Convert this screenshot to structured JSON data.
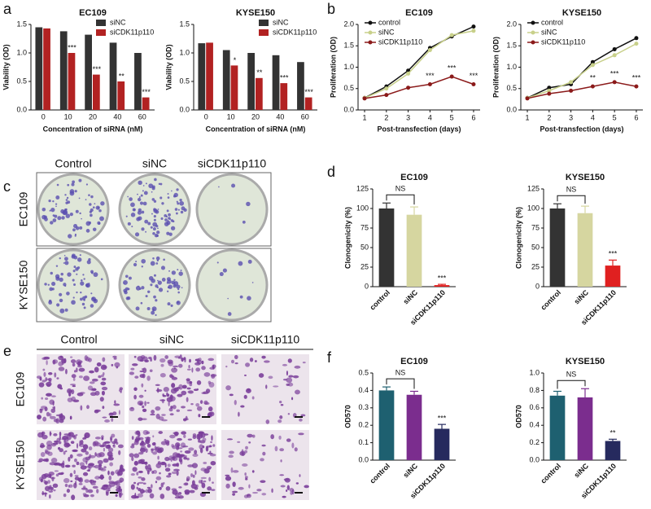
{
  "panel_labels": [
    "a",
    "b",
    "c",
    "d",
    "e",
    "f"
  ],
  "panel_c": {
    "columns": [
      "Control",
      "siNC",
      "siCDK11p110"
    ],
    "rows": [
      "EC109",
      "KYSE150"
    ]
  },
  "panel_e": {
    "columns": [
      "Control",
      "siNC",
      "siCDK11p110"
    ],
    "rows": [
      "EC109",
      "KYSE150"
    ]
  },
  "chart_data": [
    {
      "type": "bar",
      "title": "EC109",
      "xlabel": "Concentration of siRNA (nM)",
      "ylabel": "Viability (OD)",
      "categories": [
        "0",
        "10",
        "20",
        "40",
        "60"
      ],
      "series": [
        {
          "name": "siNC",
          "color": "#333333",
          "values": [
            1.45,
            1.38,
            1.32,
            1.18,
            1.0
          ]
        },
        {
          "name": "siCDK11p110",
          "color": "#b22222",
          "values": [
            1.43,
            1.0,
            0.62,
            0.5,
            0.22
          ],
          "significance": [
            null,
            "***",
            "***",
            "**",
            "***"
          ]
        }
      ],
      "ylim": [
        0,
        1.5
      ],
      "yticks": [
        {
          "value": 0,
          "label": "0.0"
        },
        {
          "value": 0.5,
          "label": "0.5"
        },
        {
          "value": 1,
          "label": "1.0"
        },
        {
          "value": 1.5,
          "label": "1.5"
        }
      ],
      "legend": "upper right"
    },
    {
      "type": "bar",
      "title": "KYSE150",
      "xlabel": "Concentration of siRNA (nM)",
      "ylabel": "Viability (OD)",
      "categories": [
        "0",
        "10",
        "20",
        "40",
        "60"
      ],
      "series": [
        {
          "name": "siNC",
          "color": "#333333",
          "values": [
            1.17,
            1.05,
            1.0,
            0.96,
            0.84
          ]
        },
        {
          "name": "siCDK11p110",
          "color": "#b22222",
          "values": [
            1.18,
            0.78,
            0.56,
            0.47,
            0.22
          ],
          "significance": [
            null,
            "*",
            "**",
            "***",
            "***"
          ]
        }
      ],
      "ylim": [
        0,
        1.5
      ],
      "yticks": [
        {
          "value": 0,
          "label": "0.0"
        },
        {
          "value": 0.5,
          "label": "0.5"
        },
        {
          "value": 1,
          "label": "1.0"
        },
        {
          "value": 1.5,
          "label": "1.5"
        }
      ],
      "legend": "upper right"
    },
    {
      "type": "line",
      "title": "EC109",
      "xlabel": "Post-transfection (days)",
      "ylabel": "Proliferation (OD)",
      "x": [
        1,
        2,
        3,
        4,
        5,
        6
      ],
      "series": [
        {
          "name": "control",
          "color": "#111111",
          "values": [
            0.28,
            0.55,
            0.92,
            1.45,
            1.72,
            1.95
          ]
        },
        {
          "name": "siNC",
          "color": "#c8d08a",
          "values": [
            0.28,
            0.5,
            0.85,
            1.4,
            1.75,
            1.85
          ]
        },
        {
          "name": "siCDK11p110",
          "color": "#8b1a1a",
          "values": [
            0.27,
            0.35,
            0.52,
            0.6,
            0.78,
            0.6
          ],
          "significance": [
            null,
            null,
            null,
            "***",
            "***",
            "***"
          ]
        }
      ],
      "xlim": [
        0.7,
        6.3
      ],
      "xticks": [
        1,
        2,
        3,
        4,
        5,
        6
      ],
      "ylim": [
        0,
        2
      ],
      "yticks": [
        {
          "value": 0,
          "label": "0.0"
        },
        {
          "value": 0.5,
          "label": "0.5"
        },
        {
          "value": 1,
          "label": "1.0"
        },
        {
          "value": 1.5,
          "label": "1.5"
        },
        {
          "value": 2,
          "label": "2.0"
        }
      ],
      "legend": "upper left"
    },
    {
      "type": "line",
      "title": "KYSE150",
      "xlabel": "Post-transfection (days)",
      "ylabel": "Proliferation (OD)",
      "x": [
        1,
        2,
        3,
        4,
        5,
        6
      ],
      "series": [
        {
          "name": "control",
          "color": "#111111",
          "values": [
            0.28,
            0.52,
            0.6,
            1.12,
            1.42,
            1.68
          ]
        },
        {
          "name": "siNC",
          "color": "#c8d08a",
          "values": [
            0.28,
            0.45,
            0.65,
            1.05,
            1.28,
            1.55
          ]
        },
        {
          "name": "siCDK11p110",
          "color": "#8b1a1a",
          "values": [
            0.27,
            0.38,
            0.45,
            0.55,
            0.65,
            0.55
          ],
          "significance": [
            null,
            null,
            null,
            "**",
            "***",
            "***"
          ]
        }
      ],
      "xlim": [
        0.7,
        6.3
      ],
      "xticks": [
        1,
        2,
        3,
        4,
        5,
        6
      ],
      "ylim": [
        0,
        2
      ],
      "yticks": [
        {
          "value": 0,
          "label": "0.0"
        },
        {
          "value": 0.5,
          "label": "0.5"
        },
        {
          "value": 1,
          "label": "1.0"
        },
        {
          "value": 1.5,
          "label": "1.5"
        },
        {
          "value": 2,
          "label": "2.0"
        }
      ],
      "legend": "upper left"
    },
    {
      "type": "bar",
      "title": "EC109",
      "ylabel": "Clonogenicity (%)",
      "categories": [
        "control",
        "siNC",
        "siCDK11p110"
      ],
      "values": [
        100,
        92,
        2
      ],
      "errors": [
        7,
        10,
        1
      ],
      "colors": [
        "#333333",
        "#d6d6a0",
        "#e02020"
      ],
      "significance": [
        null,
        null,
        "***"
      ],
      "bracket_label": "NS",
      "ylim": [
        0,
        125
      ],
      "yticks": [
        0,
        25,
        50,
        75,
        100,
        125
      ],
      "xtick_rotation": 45
    },
    {
      "type": "bar",
      "title": "KYSE150",
      "ylabel": "Clonogenicity (%)",
      "categories": [
        "control",
        "siNC",
        "siCDK11p110"
      ],
      "values": [
        100,
        94,
        27
      ],
      "errors": [
        6,
        9,
        7
      ],
      "colors": [
        "#333333",
        "#d6d6a0",
        "#e02020"
      ],
      "significance": [
        null,
        null,
        "***"
      ],
      "bracket_label": "NS",
      "ylim": [
        0,
        125
      ],
      "yticks": [
        0,
        25,
        50,
        75,
        100,
        125
      ],
      "xtick_rotation": 45
    },
    {
      "type": "bar",
      "title": "EC109",
      "ylabel": "OD570",
      "categories": [
        "control",
        "siNC",
        "siCDK11p110"
      ],
      "values": [
        0.4,
        0.375,
        0.18
      ],
      "errors": [
        0.02,
        0.02,
        0.025
      ],
      "colors": [
        "#1e6070",
        "#7b2d8e",
        "#262a5e"
      ],
      "significance": [
        null,
        null,
        "***"
      ],
      "bracket_label": "NS",
      "ylim": [
        0,
        0.5
      ],
      "yticks": [
        {
          "value": 0,
          "label": "0.0"
        },
        0.1,
        0.2,
        0.3,
        0.4,
        0.5
      ],
      "xtick_rotation": 45
    },
    {
      "type": "bar",
      "title": "KYSE150",
      "ylabel": "OD570",
      "categories": [
        "control",
        "siNC",
        "siCDK11p110"
      ],
      "values": [
        0.74,
        0.72,
        0.22
      ],
      "errors": [
        0.05,
        0.1,
        0.02
      ],
      "colors": [
        "#1e6070",
        "#7b2d8e",
        "#262a5e"
      ],
      "significance": [
        null,
        null,
        "**"
      ],
      "bracket_label": "NS",
      "ylim": [
        0,
        1
      ],
      "yticks": [
        {
          "value": 0,
          "label": "0.0"
        },
        0.2,
        0.4,
        0.6,
        0.8,
        {
          "value": 1,
          "label": "1.0"
        }
      ],
      "xtick_rotation": 45
    }
  ]
}
